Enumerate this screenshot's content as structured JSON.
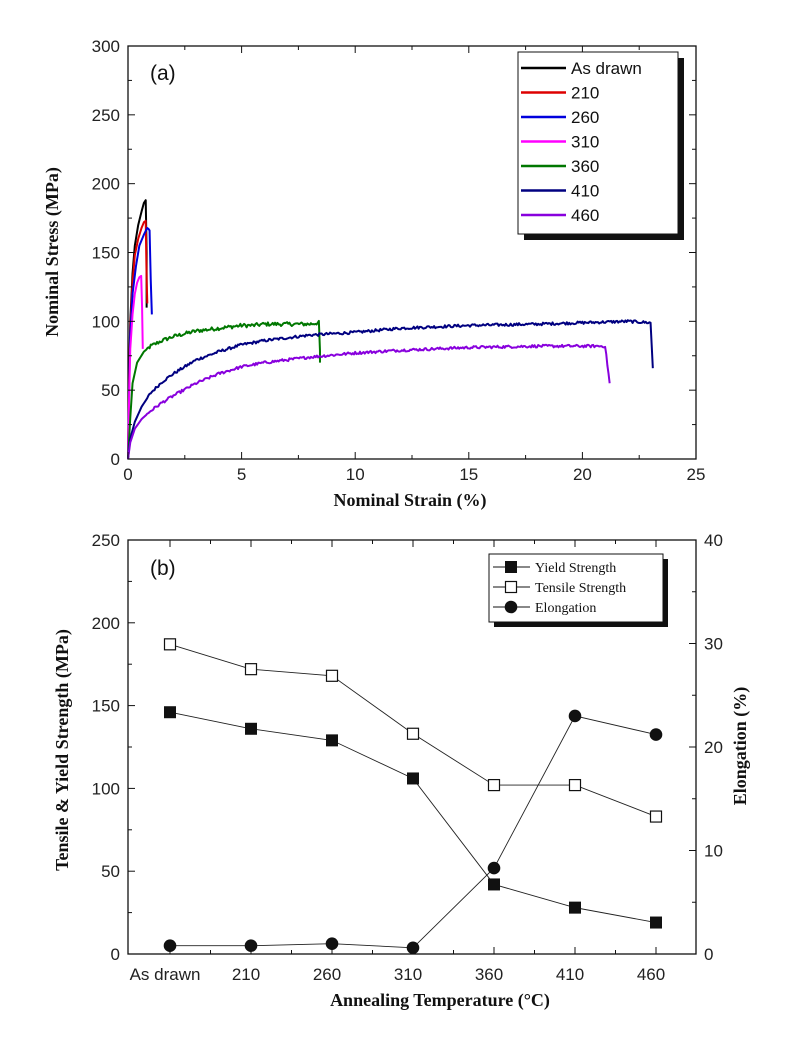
{
  "chart_data": [
    {
      "type": "line",
      "panel_label": "(a)",
      "xlabel": "Nominal Strain (%)",
      "ylabel": "Nominal Stress (MPa)",
      "xlim": [
        0,
        25
      ],
      "ylim": [
        0,
        300
      ],
      "x_ticks": [
        "0",
        "5",
        "10",
        "15",
        "20",
        "25"
      ],
      "y_ticks": [
        "0",
        "50",
        "100",
        "150",
        "200",
        "250",
        "300"
      ],
      "legend_position": "top-right",
      "series": [
        {
          "name": "As drawn",
          "color": "#000000",
          "noise": 0.6,
          "points": [
            [
              0,
              0
            ],
            [
              0.05,
              60
            ],
            [
              0.1,
              100
            ],
            [
              0.2,
              135
            ],
            [
              0.3,
              155
            ],
            [
              0.45,
              170
            ],
            [
              0.6,
              180
            ],
            [
              0.7,
              186
            ],
            [
              0.78,
              188
            ],
            [
              0.82,
              150
            ],
            [
              0.82,
              110
            ]
          ]
        },
        {
          "name": "210",
          "color": "#dd0000",
          "noise": 0.6,
          "points": [
            [
              0,
              0
            ],
            [
              0.05,
              55
            ],
            [
              0.1,
              95
            ],
            [
              0.2,
              128
            ],
            [
              0.3,
              148
            ],
            [
              0.45,
              160
            ],
            [
              0.6,
              168
            ],
            [
              0.7,
              172
            ],
            [
              0.78,
              173
            ],
            [
              0.82,
              130
            ],
            [
              0.85,
              113
            ]
          ]
        },
        {
          "name": "260",
          "color": "#0000dd",
          "noise": 0.6,
          "points": [
            [
              0,
              0
            ],
            [
              0.05,
              50
            ],
            [
              0.1,
              90
            ],
            [
              0.2,
              120
            ],
            [
              0.35,
              140
            ],
            [
              0.5,
              155
            ],
            [
              0.7,
              163
            ],
            [
              0.85,
              168
            ],
            [
              0.95,
              166
            ],
            [
              1.0,
              130
            ],
            [
              1.05,
              105
            ]
          ]
        },
        {
          "name": "310",
          "color": "#ff00ff",
          "noise": 0.5,
          "points": [
            [
              0,
              0
            ],
            [
              0.05,
              45
            ],
            [
              0.1,
              80
            ],
            [
              0.2,
              105
            ],
            [
              0.3,
              120
            ],
            [
              0.4,
              128
            ],
            [
              0.5,
              132
            ],
            [
              0.58,
              133
            ],
            [
              0.62,
              110
            ],
            [
              0.65,
              80
            ]
          ]
        },
        {
          "name": "360",
          "color": "#007700",
          "noise": 1.4,
          "points": [
            [
              0,
              0
            ],
            [
              0.1,
              30
            ],
            [
              0.2,
              55
            ],
            [
              0.4,
              70
            ],
            [
              0.7,
              78
            ],
            [
              1,
              82
            ],
            [
              1.5,
              86
            ],
            [
              2,
              89
            ],
            [
              3,
              93
            ],
            [
              4,
              95
            ],
            [
              5,
              97
            ],
            [
              5.5,
              97
            ],
            [
              6,
              98
            ],
            [
              7,
              98
            ],
            [
              8,
              98
            ],
            [
              8.4,
              99
            ],
            [
              8.45,
              78
            ],
            [
              8.45,
              70
            ]
          ]
        },
        {
          "name": "410",
          "color": "#000080",
          "noise": 1.0,
          "points": [
            [
              0,
              0
            ],
            [
              0.1,
              15
            ],
            [
              0.3,
              27
            ],
            [
              0.6,
              38
            ],
            [
              1,
              48
            ],
            [
              1.5,
              56
            ],
            [
              2,
              62
            ],
            [
              3,
              72
            ],
            [
              4,
              78
            ],
            [
              5,
              83
            ],
            [
              6,
              86
            ],
            [
              8,
              90
            ],
            [
              10,
              92
            ],
            [
              12,
              95
            ],
            [
              15,
              97
            ],
            [
              18,
              98
            ],
            [
              20,
              99
            ],
            [
              22,
              100
            ],
            [
              23,
              99
            ],
            [
              23.1,
              66
            ]
          ]
        },
        {
          "name": "460",
          "color": "#8800dd",
          "noise": 1.0,
          "points": [
            [
              0,
              0
            ],
            [
              0.1,
              12
            ],
            [
              0.3,
              22
            ],
            [
              0.6,
              29
            ],
            [
              1,
              35
            ],
            [
              1.5,
              41
            ],
            [
              2,
              46
            ],
            [
              3,
              55
            ],
            [
              4,
              62
            ],
            [
              5,
              67
            ],
            [
              6,
              70
            ],
            [
              8,
              74
            ],
            [
              10,
              77
            ],
            [
              12,
              79
            ],
            [
              15,
              81
            ],
            [
              18,
              82
            ],
            [
              20,
              82
            ],
            [
              21,
              82
            ],
            [
              21.2,
              55
            ]
          ]
        }
      ]
    },
    {
      "type": "line",
      "panel_label": "(b)",
      "xlabel": "Annealing Temperature (°C)",
      "ylabel": "Tensile & Yield Strength (MPa)",
      "ylabel_right": "Elongation (%)",
      "categories": [
        "As drawn",
        "210",
        "260",
        "310",
        "360",
        "410",
        "460"
      ],
      "ylim": [
        0,
        250
      ],
      "ylim_right": [
        0,
        40
      ],
      "y_ticks": [
        "0",
        "50",
        "100",
        "150",
        "200",
        "250"
      ],
      "y_ticks_right": [
        "0",
        "10",
        "20",
        "30",
        "40"
      ],
      "legend_position": "top-right",
      "series": [
        {
          "name": "Yield Strength",
          "axis": "left",
          "marker": "filled-square",
          "values": [
            146,
            136,
            129,
            106,
            42,
            28,
            19
          ]
        },
        {
          "name": "Tensile Strength",
          "axis": "left",
          "marker": "open-square",
          "values": [
            187,
            172,
            168,
            133,
            102,
            102,
            83
          ]
        },
        {
          "name": "Elongation",
          "axis": "right",
          "marker": "filled-circle",
          "values": [
            0.8,
            0.8,
            1.0,
            0.6,
            8.3,
            23.0,
            21.2
          ]
        }
      ]
    }
  ]
}
